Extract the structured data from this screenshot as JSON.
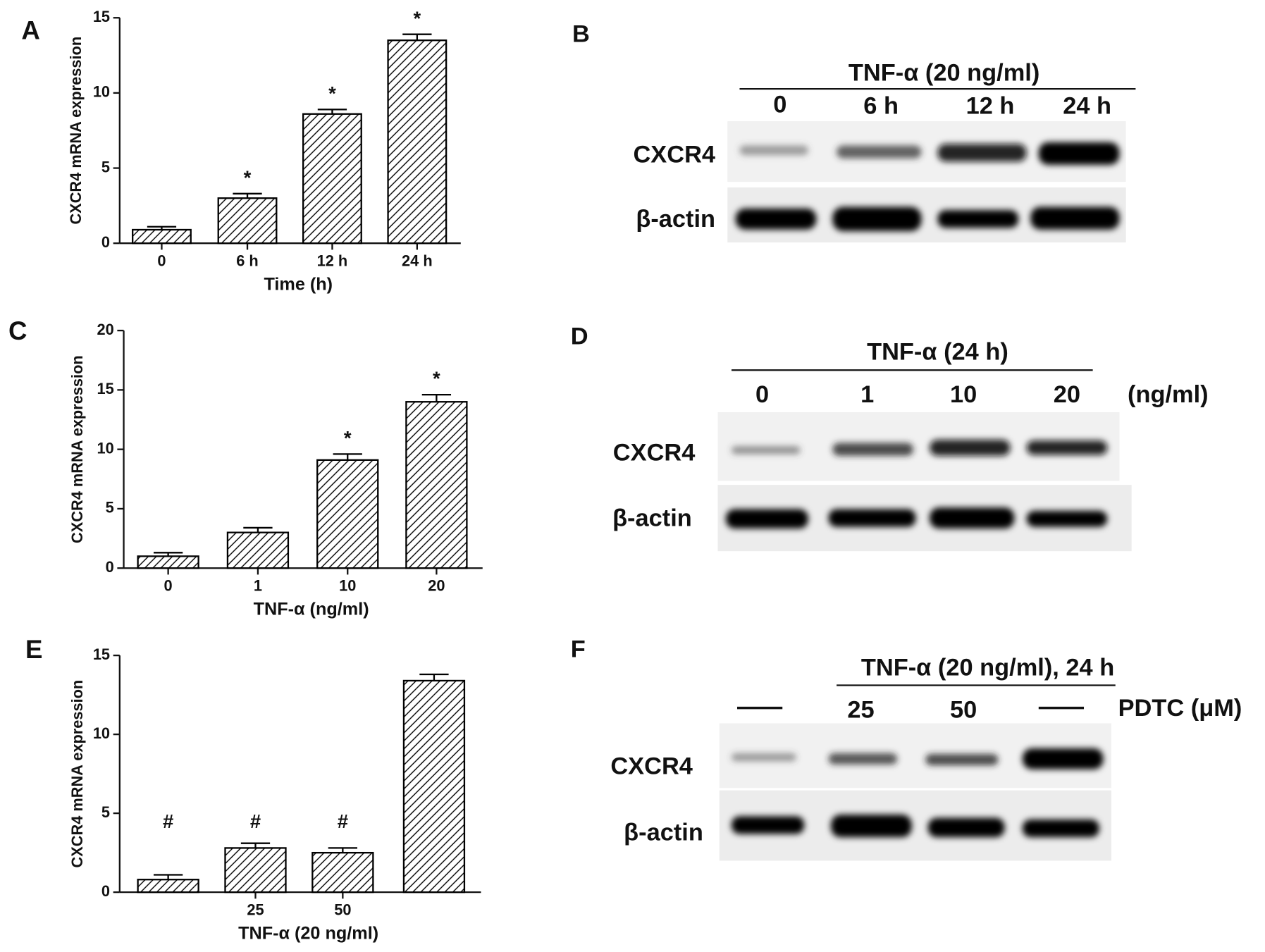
{
  "chart_data": [
    {
      "type": "bar",
      "panel_label": "A",
      "ylabel": "CXCR4 mRNA expression",
      "xlabel": "Time (h)",
      "categories": [
        "0",
        "6 h",
        "12 h",
        "24 h"
      ],
      "values": [
        0.9,
        3.0,
        8.6,
        13.5
      ],
      "errors": [
        0.2,
        0.3,
        0.3,
        0.4
      ],
      "significance": [
        null,
        "*",
        "*",
        "*"
      ],
      "ylim": [
        0,
        15
      ],
      "yticks": [
        0,
        5,
        10,
        15
      ],
      "color": "#000000"
    },
    {
      "type": "bar",
      "panel_label": "C",
      "ylabel": "CXCR4 mRNA expression",
      "xlabel": "TNF-α (ng/ml)",
      "categories": [
        "0",
        "1",
        "10",
        "20"
      ],
      "values": [
        1.0,
        3.0,
        9.1,
        14.0
      ],
      "errors": [
        0.3,
        0.4,
        0.5,
        0.6
      ],
      "significance": [
        null,
        null,
        "*",
        "*"
      ],
      "ylim": [
        0,
        20
      ],
      "yticks": [
        0,
        5,
        10,
        15,
        20
      ],
      "color": "#000000"
    },
    {
      "type": "bar",
      "panel_label": "E",
      "ylabel": "CXCR4 mRNA expression",
      "xlabel": "TNF-α (20 ng/ml)",
      "categories": [
        null,
        "25",
        "50",
        null
      ],
      "values": [
        0.8,
        2.8,
        2.5,
        13.4
      ],
      "errors": [
        0.3,
        0.3,
        0.3,
        0.4
      ],
      "significance": [
        "#",
        "#",
        "#",
        null
      ],
      "ylim": [
        0,
        15
      ],
      "yticks": [
        0,
        5,
        10,
        15
      ],
      "color": "#000000"
    }
  ],
  "blots": [
    {
      "label": "B",
      "header": "TNF-α (20 ng/ml)",
      "lanes": [
        "0",
        "6 h",
        "12 h",
        "24 h"
      ],
      "rows": [
        "CXCR4",
        "β-actin"
      ]
    },
    {
      "label": "D",
      "header": "TNF-α (24 h)",
      "lanes": [
        "0",
        "1",
        "10",
        "20"
      ],
      "unit": "(ng/ml)",
      "rows": [
        "CXCR4",
        "β-actin"
      ]
    },
    {
      "label": "F",
      "header": "TNF-α (20 ng/ml), 24 h",
      "lanes": [
        null,
        "25",
        "50",
        null
      ],
      "unit": "PDTC (μM)",
      "rows": [
        "CXCR4",
        "β-actin"
      ]
    }
  ]
}
